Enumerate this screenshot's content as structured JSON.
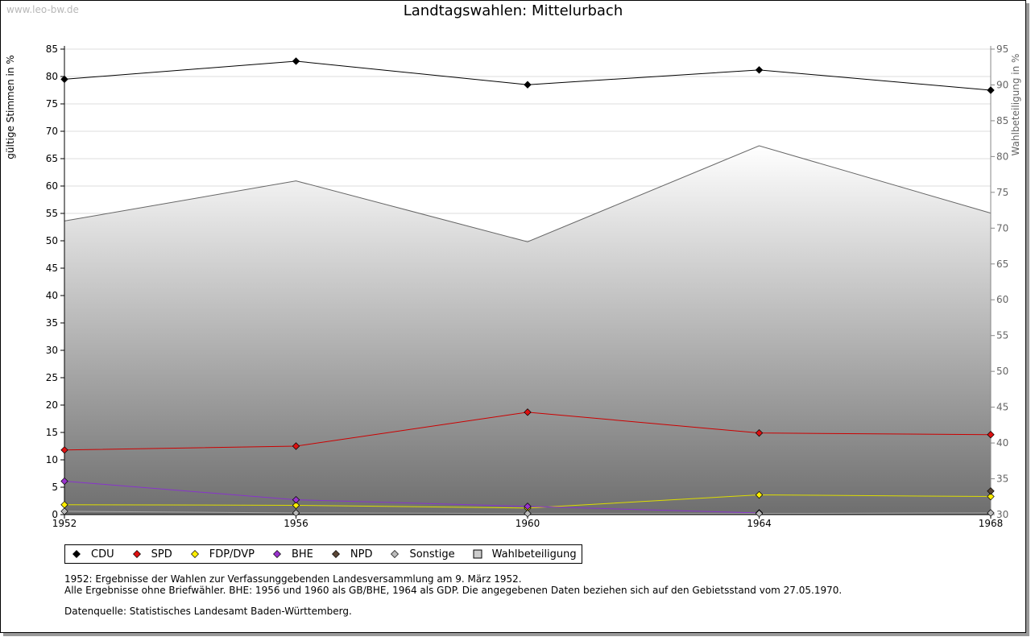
{
  "watermark": "www.leo-bw.de",
  "title": "Landtagswahlen: Mittelurbach",
  "chart_data": {
    "type": "line",
    "title": "Landtagswahlen: Mittelurbach",
    "xlabel": "",
    "ylabel": "gültige Stimmen in %",
    "y2label": "Wahlbeteiligung in %",
    "x": [
      "1952",
      "1956",
      "1960",
      "1964",
      "1968"
    ],
    "ylim": [
      0,
      85
    ],
    "y2lim": [
      30,
      95
    ],
    "yticks": [
      0,
      5,
      10,
      15,
      20,
      25,
      30,
      35,
      40,
      45,
      50,
      55,
      60,
      65,
      70,
      75,
      80,
      85
    ],
    "y2ticks": [
      30,
      35,
      40,
      45,
      50,
      55,
      60,
      65,
      70,
      75,
      80,
      85,
      90,
      95
    ],
    "grid": true,
    "legend_position": "bottom-left",
    "series": [
      {
        "name": "CDU",
        "axis": "left",
        "color": "#000000",
        "marker": "#000000",
        "values": [
          79.5,
          82.8,
          78.5,
          81.2,
          77.5
        ]
      },
      {
        "name": "SPD",
        "axis": "left",
        "color": "#cc0000",
        "marker": "#dd1111",
        "values": [
          11.8,
          12.5,
          18.7,
          14.9,
          14.6
        ]
      },
      {
        "name": "FDP/DVP",
        "axis": "left",
        "color": "#dddd00",
        "marker": "#ffee00",
        "values": [
          1.8,
          1.7,
          1.2,
          3.6,
          3.3
        ]
      },
      {
        "name": "BHE",
        "axis": "left",
        "color": "#8833cc",
        "marker": "#9933cc",
        "values": [
          6.1,
          2.7,
          1.5,
          0.3,
          null
        ]
      },
      {
        "name": "NPD",
        "axis": "left",
        "color": "#5a4636",
        "marker": "#5a4636",
        "values": [
          null,
          null,
          null,
          null,
          4.3
        ]
      },
      {
        "name": "Sonstige",
        "axis": "left",
        "color": "#aaaaaa",
        "marker": "#bbbbbb",
        "values": [
          0.6,
          0.3,
          0.2,
          0.2,
          0.3
        ]
      },
      {
        "name": "Wahlbeteiligung",
        "axis": "right",
        "type": "area",
        "color": "#666666",
        "values": [
          71.0,
          76.6,
          68.1,
          81.5,
          72.1
        ]
      }
    ]
  },
  "notes": [
    "1952: Ergebnisse der Wahlen zur Verfassunggebenden Landesversammlung am 9. März 1952.",
    "Alle Ergebnisse ohne Briefwähler. BHE: 1956 und 1960 als GB/BHE, 1964 als GDP. Die angegebenen Daten beziehen sich auf den Gebietsstand vom 27.05.1970."
  ],
  "source": "Datenquelle: Statistisches Landesamt Baden-Württemberg."
}
